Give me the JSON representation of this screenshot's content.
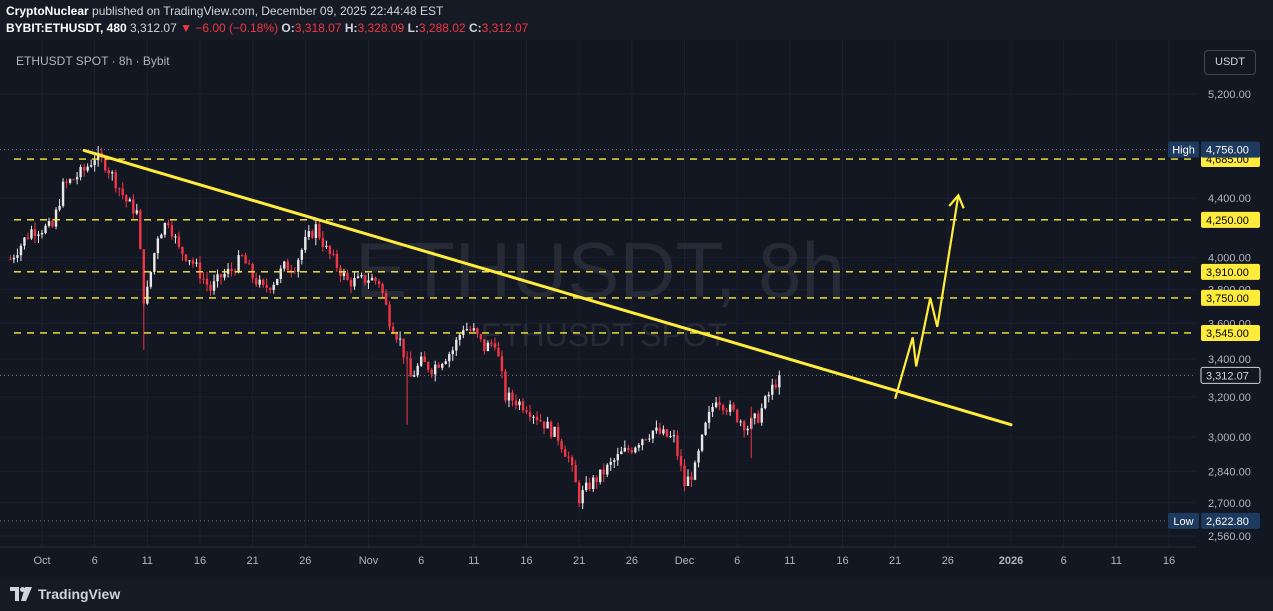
{
  "header": {
    "publisher": "CryptoNuclear",
    "published_text": " published on TradingView.com, December 09, 2025 22:44:48 EST",
    "symbol_full": "BYBIT:ETHUSDT, 480",
    "last_price": "3,312.07",
    "change": "−6.00 (−0.18%)",
    "open_label": "O:",
    "open": "3,318.07",
    "high_label": "H:",
    "high": "3,328.09",
    "low_label": "L:",
    "low": "3,288.02",
    "close_label": "C:",
    "close": "3,312.07"
  },
  "chart_title": "ETHUSDT SPOT · 8h · Bybit",
  "currency": "USDT",
  "watermark": {
    "line1": "ETHUSDT, 8h",
    "line2": "ETHUSDT SPOT"
  },
  "footer": {
    "brand": "TradingView"
  },
  "colors": {
    "background": "#131722",
    "up": "#e8e8e8",
    "down": "#f23645",
    "annotation": "#ffeb3b",
    "label_bg": "#ffeb3b",
    "label_fg": "#000000",
    "hl_box": "#1e3a5f"
  },
  "chart_data": {
    "type": "candlestick",
    "title": "ETHUSDT SPOT · 8h · Bybit",
    "interval": "8h",
    "y_scale": "log",
    "y_ticks": [
      5200,
      4400,
      4000,
      3800,
      3600,
      3400,
      3200,
      3000,
      2840,
      2700,
      2560
    ],
    "y_tick_labels": [
      "5,200.00",
      "4,400.00",
      "4,000.00",
      "3,800.00",
      "3,600.00",
      "3,400.00",
      "3,200.00",
      "3,000.00",
      "2,840.00",
      "2,700.00",
      "2,560.00"
    ],
    "x_ticks": [
      {
        "date": "2025-10-01",
        "label": "Oct"
      },
      {
        "date": "2025-10-06",
        "label": "6"
      },
      {
        "date": "2025-10-11",
        "label": "11"
      },
      {
        "date": "2025-10-16",
        "label": "16"
      },
      {
        "date": "2025-10-21",
        "label": "21"
      },
      {
        "date": "2025-10-26",
        "label": "26"
      },
      {
        "date": "2025-11-01",
        "label": "Nov"
      },
      {
        "date": "2025-11-06",
        "label": "6"
      },
      {
        "date": "2025-11-11",
        "label": "11"
      },
      {
        "date": "2025-11-16",
        "label": "16"
      },
      {
        "date": "2025-11-21",
        "label": "21"
      },
      {
        "date": "2025-11-26",
        "label": "26"
      },
      {
        "date": "2025-12-01",
        "label": "Dec"
      },
      {
        "date": "2025-12-06",
        "label": "6"
      },
      {
        "date": "2025-12-11",
        "label": "11"
      },
      {
        "date": "2025-12-16",
        "label": "16"
      },
      {
        "date": "2025-12-21",
        "label": "21"
      },
      {
        "date": "2025-12-26",
        "label": "26"
      },
      {
        "date": "2026-01-01",
        "label": "2026"
      },
      {
        "date": "2026-01-06",
        "label": "6"
      },
      {
        "date": "2026-01-11",
        "label": "11"
      },
      {
        "date": "2026-01-16",
        "label": "16"
      }
    ],
    "x_start": "2025-09-28T00:00",
    "x_end": "2026-01-21T00:00",
    "close_path": [
      [
        "2025-09-28",
        3990
      ],
      [
        "2025-09-30",
        4180
      ],
      [
        "2025-10-02",
        4200
      ],
      [
        "2025-10-03",
        4480
      ],
      [
        "2025-10-05",
        4600
      ],
      [
        "2025-10-06",
        4700
      ],
      [
        "2025-10-07",
        4650
      ],
      [
        "2025-10-08",
        4520
      ],
      [
        "2025-10-09",
        4380
      ],
      [
        "2025-10-10",
        4300
      ],
      [
        "2025-10-10T16",
        3750
      ],
      [
        "2025-10-11",
        3790
      ],
      [
        "2025-10-12",
        4150
      ],
      [
        "2025-10-13",
        4250
      ],
      [
        "2025-10-14",
        4050
      ],
      [
        "2025-10-15",
        4000
      ],
      [
        "2025-10-16",
        3900
      ],
      [
        "2025-10-17",
        3800
      ],
      [
        "2025-10-18",
        3880
      ],
      [
        "2025-10-19",
        3920
      ],
      [
        "2025-10-20",
        4000
      ],
      [
        "2025-10-21",
        3880
      ],
      [
        "2025-10-22",
        3800
      ],
      [
        "2025-10-23",
        3850
      ],
      [
        "2025-10-24",
        3940
      ],
      [
        "2025-10-25",
        3950
      ],
      [
        "2025-10-26",
        4100
      ],
      [
        "2025-10-27",
        4200
      ],
      [
        "2025-10-28",
        4050
      ],
      [
        "2025-10-29",
        3950
      ],
      [
        "2025-10-30",
        3850
      ],
      [
        "2025-10-31",
        3850
      ],
      [
        "2025-11-01",
        3870
      ],
      [
        "2025-11-02",
        3850
      ],
      [
        "2025-11-03",
        3620
      ],
      [
        "2025-11-04",
        3500
      ],
      [
        "2025-11-05",
        3300
      ],
      [
        "2025-11-06",
        3380
      ],
      [
        "2025-11-07",
        3350
      ],
      [
        "2025-11-08",
        3400
      ],
      [
        "2025-11-09",
        3450
      ],
      [
        "2025-11-10",
        3580
      ],
      [
        "2025-11-11",
        3550
      ],
      [
        "2025-11-12",
        3460
      ],
      [
        "2025-11-13",
        3500
      ],
      [
        "2025-11-14",
        3200
      ],
      [
        "2025-11-15",
        3180
      ],
      [
        "2025-11-16",
        3150
      ],
      [
        "2025-11-17",
        3100
      ],
      [
        "2025-11-18",
        3050
      ],
      [
        "2025-11-19",
        3000
      ],
      [
        "2025-11-20",
        2900
      ],
      [
        "2025-11-21",
        2720
      ],
      [
        "2025-11-22",
        2780
      ],
      [
        "2025-11-23",
        2820
      ],
      [
        "2025-11-24",
        2870
      ],
      [
        "2025-11-25",
        2920
      ],
      [
        "2025-11-26",
        2950
      ],
      [
        "2025-11-27",
        3000
      ],
      [
        "2025-11-28",
        3030
      ],
      [
        "2025-11-29",
        3010
      ],
      [
        "2025-11-30",
        2990
      ],
      [
        "2025-12-01",
        2780
      ],
      [
        "2025-12-02",
        2850
      ],
      [
        "2025-12-03",
        3050
      ],
      [
        "2025-12-04",
        3200
      ],
      [
        "2025-12-05",
        3150
      ],
      [
        "2025-12-06",
        3100
      ],
      [
        "2025-12-07",
        3050
      ],
      [
        "2025-12-08",
        3100
      ],
      [
        "2025-12-09",
        3210
      ],
      [
        "2025-12-10",
        3312
      ]
    ],
    "high": {
      "label": "High",
      "value": 4756.0,
      "value_label": "4,756.00"
    },
    "low": {
      "label": "Low",
      "value": 2622.8,
      "value_label": "2,622.80"
    },
    "current": {
      "value": 3312.07,
      "value_label": "3,312.07"
    },
    "levels": [
      {
        "value": 4685,
        "label": "4,685.00"
      },
      {
        "value": 4250,
        "label": "4,250.00"
      },
      {
        "value": 3910,
        "label": "3,910.00"
      },
      {
        "value": 3750,
        "label": "3,750.00"
      },
      {
        "value": 3545,
        "label": "3,545.00"
      }
    ],
    "trendline": [
      [
        "2025-10-05",
        4750
      ],
      [
        "2026-01-01",
        3060
      ]
    ],
    "projection": [
      [
        "2025-12-21",
        3190
      ],
      [
        "2025-12-22T16",
        3520
      ],
      [
        "2025-12-23",
        3360
      ],
      [
        "2025-12-24T08",
        3750
      ],
      [
        "2025-12-25",
        3580
      ],
      [
        "2025-12-27",
        4420
      ]
    ]
  }
}
